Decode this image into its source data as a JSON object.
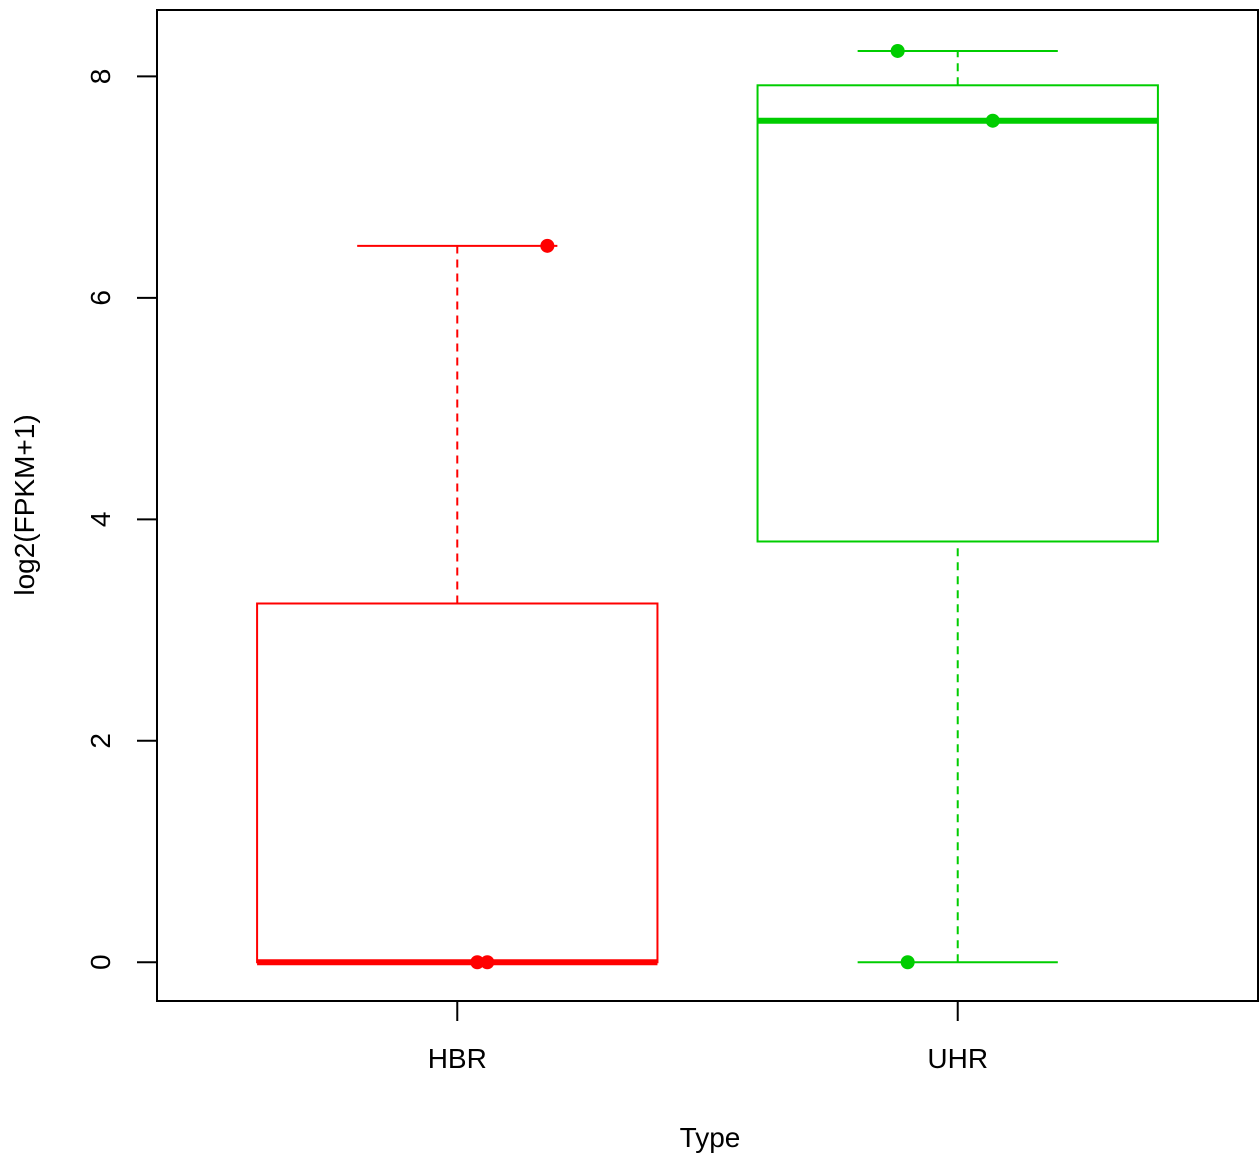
{
  "chart_data": {
    "type": "boxplot",
    "title": "",
    "xlabel": "Type",
    "ylabel": "log2(FPKM+1)",
    "ylim": [
      -0.35,
      8.6
    ],
    "yticks": [
      0,
      2,
      4,
      6,
      8
    ],
    "grid": false,
    "legend": "none",
    "categories": [
      "HBR",
      "UHR"
    ],
    "boxes": [
      {
        "category": "HBR",
        "color": "#ff0000",
        "whisker_low": 0,
        "q1": 0,
        "median": 0,
        "q3": 3.24,
        "whisker_high": 6.47,
        "points": [
          {
            "offset": 0.04,
            "y": 0
          },
          {
            "offset": 0.06,
            "y": 0
          },
          {
            "offset": 0.18,
            "y": 6.47
          }
        ]
      },
      {
        "category": "UHR",
        "color": "#00cd00",
        "whisker_low": 0,
        "q1": 3.8,
        "median": 7.6,
        "q3": 7.92,
        "whisker_high": 8.23,
        "points": [
          {
            "offset": -0.1,
            "y": 0
          },
          {
            "offset": 0.07,
            "y": 7.6
          },
          {
            "offset": -0.12,
            "y": 8.23
          }
        ]
      }
    ]
  }
}
